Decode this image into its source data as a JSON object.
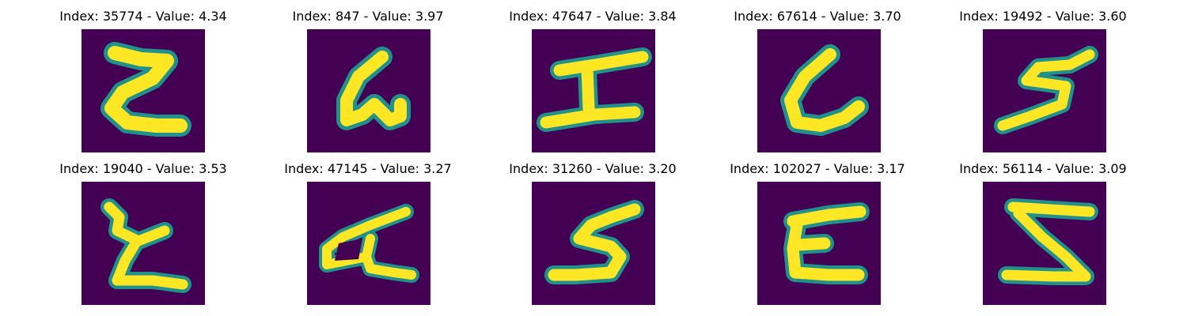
{
  "colors": {
    "background": "#440154",
    "glyph_core": "#fde725",
    "glyph_edge": "#21918c"
  },
  "images": [
    {
      "title": "Index: 35774 - Value: 4.34"
    },
    {
      "title": "Index: 847 - Value: 3.97"
    },
    {
      "title": "Index: 47647 - Value: 3.84"
    },
    {
      "title": "Index: 67614 - Value: 3.70"
    },
    {
      "title": "Index: 19492 - Value: 3.60"
    },
    {
      "title": "Index: 19040 - Value: 3.53"
    },
    {
      "title": "Index: 47145 - Value: 3.27"
    },
    {
      "title": "Index: 31260 - Value: 3.20"
    },
    {
      "title": "Index: 102027 - Value: 3.17"
    },
    {
      "title": "Index: 56114 - Value: 3.09"
    }
  ]
}
